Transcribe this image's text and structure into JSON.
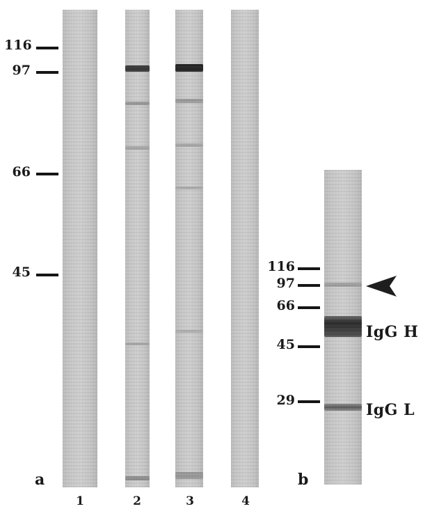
{
  "panel_a": {
    "letter": "a",
    "markers": [
      "116",
      "97",
      "66",
      "45"
    ],
    "lanes": [
      "1",
      "2",
      "3",
      "4"
    ]
  },
  "panel_b": {
    "letter": "b",
    "markers": [
      "116",
      "97",
      "66",
      "45",
      "29"
    ],
    "band_labels": {
      "heavy": "IgG H",
      "light": "IgG L"
    }
  },
  "colors": {
    "lane_background": "#c8c8c8",
    "band_dark": "#2e2e2e",
    "ink": "#151515"
  },
  "icons": {
    "arrow": "arrowhead-left-icon"
  }
}
